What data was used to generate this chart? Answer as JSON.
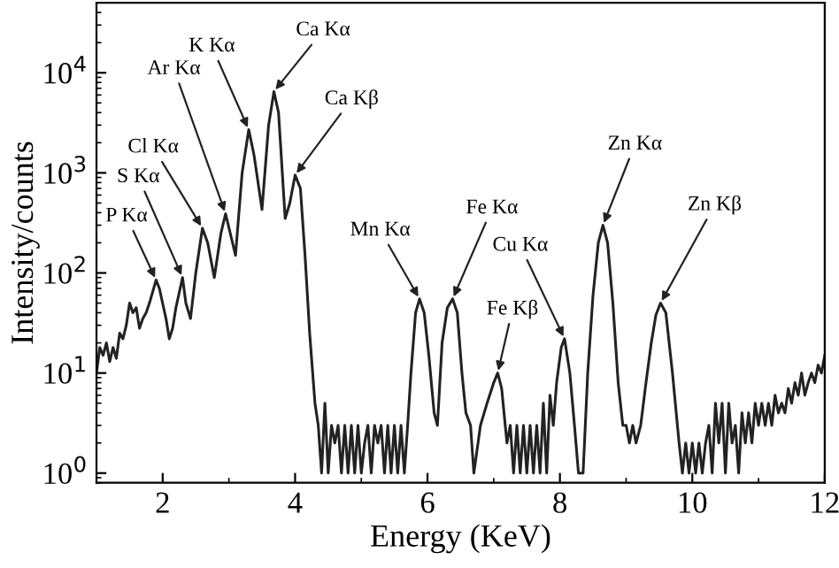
{
  "chart_data": {
    "type": "line",
    "xlabel": "Energy (KeV)",
    "ylabel": "Intensity/counts",
    "log": "y",
    "grid": false,
    "marker": "none",
    "line_style": "solid",
    "xlim": [
      1,
      12
    ],
    "xticks": [
      2,
      4,
      6,
      8,
      10,
      12
    ],
    "ylim": [
      0.8,
      50000
    ],
    "yticks": [
      {
        "value": 1,
        "label": "10$^{0}$"
      },
      {
        "value": 10,
        "label": "10$^{1}$"
      },
      {
        "value": 100,
        "label": "10$^{2}$"
      },
      {
        "value": 1000,
        "label": "10$^{3}$"
      },
      {
        "value": 10000,
        "label": "10$^{4}$"
      }
    ],
    "series": [
      {
        "color": "#222222",
        "x": [
          1.0,
          1.05,
          1.1,
          1.15,
          1.2,
          1.25,
          1.3,
          1.35,
          1.4,
          1.45,
          1.5,
          1.55,
          1.6,
          1.65,
          1.7,
          1.75,
          1.8,
          1.9,
          1.95,
          2.05,
          2.1,
          2.15,
          2.2,
          2.3,
          2.35,
          2.42,
          2.5,
          2.6,
          2.68,
          2.78,
          2.88,
          2.95,
          3.02,
          3.1,
          3.2,
          3.3,
          3.38,
          3.5,
          3.6,
          3.68,
          3.75,
          3.85,
          3.92,
          4.0,
          4.08,
          4.15,
          4.22,
          4.3,
          4.35,
          4.4,
          4.45,
          4.5,
          4.55,
          4.6,
          4.65,
          4.7,
          4.75,
          4.8,
          4.85,
          4.9,
          4.95,
          5.0,
          5.05,
          5.1,
          5.15,
          5.2,
          5.25,
          5.3,
          5.35,
          5.4,
          5.45,
          5.5,
          5.55,
          5.6,
          5.65,
          5.7,
          5.75,
          5.82,
          5.88,
          5.95,
          6.02,
          6.1,
          6.15,
          6.22,
          6.3,
          6.38,
          6.45,
          6.52,
          6.58,
          6.65,
          6.7,
          6.8,
          6.9,
          7.0,
          7.06,
          7.12,
          7.2,
          7.25,
          7.3,
          7.35,
          7.4,
          7.45,
          7.5,
          7.55,
          7.6,
          7.65,
          7.7,
          7.75,
          7.8,
          7.85,
          7.9,
          7.95,
          8.02,
          8.07,
          8.15,
          8.22,
          8.28,
          8.35,
          8.42,
          8.5,
          8.58,
          8.65,
          8.72,
          8.8,
          8.88,
          8.95,
          9.0,
          9.05,
          9.1,
          9.15,
          9.22,
          9.3,
          9.38,
          9.45,
          9.52,
          9.6,
          9.7,
          9.8,
          9.85,
          9.9,
          9.95,
          10.0,
          10.05,
          10.1,
          10.15,
          10.2,
          10.25,
          10.3,
          10.35,
          10.4,
          10.45,
          10.5,
          10.55,
          10.6,
          10.65,
          10.7,
          10.75,
          10.8,
          10.85,
          10.9,
          10.95,
          11.0,
          11.05,
          11.1,
          11.15,
          11.2,
          11.25,
          11.3,
          11.35,
          11.4,
          11.45,
          11.5,
          11.55,
          11.6,
          11.65,
          11.7,
          11.75,
          11.8,
          11.85,
          11.9,
          11.95,
          12.0
        ],
        "values": [
          10,
          18,
          15,
          20,
          13,
          18,
          14,
          25,
          22,
          30,
          50,
          40,
          45,
          28,
          35,
          40,
          50,
          85,
          70,
          35,
          22,
          28,
          45,
          90,
          50,
          35,
          100,
          280,
          200,
          90,
          250,
          390,
          250,
          150,
          1000,
          2700,
          1500,
          430,
          3000,
          6500,
          4000,
          350,
          500,
          950,
          700,
          150,
          25,
          5,
          3,
          1,
          5,
          1,
          3,
          2,
          3,
          1,
          3,
          1,
          3,
          1,
          3,
          1,
          2,
          3,
          1,
          3,
          2,
          3,
          1,
          3,
          1,
          3,
          1,
          3,
          1,
          3,
          10,
          40,
          55,
          40,
          15,
          4,
          3,
          20,
          45,
          55,
          40,
          10,
          4,
          3,
          1,
          3,
          5,
          8,
          10,
          7,
          2,
          3,
          1,
          3,
          1,
          3,
          1,
          3,
          1,
          3,
          1,
          5,
          1,
          6,
          3,
          8,
          18,
          22,
          10,
          3,
          1,
          1,
          10,
          60,
          200,
          300,
          200,
          50,
          8,
          3,
          3,
          2,
          3,
          2,
          3,
          8,
          20,
          38,
          50,
          40,
          10,
          2,
          1,
          2,
          1,
          2,
          1,
          2,
          1,
          2,
          3,
          1,
          5,
          2,
          5,
          1,
          5,
          2,
          3,
          1,
          4,
          2,
          4,
          2,
          5,
          3,
          5,
          3,
          5,
          3,
          6,
          4,
          5,
          4,
          7,
          5,
          8,
          6,
          10,
          6,
          8,
          10,
          8,
          12,
          10,
          15
        ]
      }
    ],
    "annotations": [
      {
        "text": "P Kα",
        "x": 1.9,
        "y": 85
      },
      {
        "text": "S Kα",
        "x": 2.3,
        "y": 90
      },
      {
        "text": "Cl Kα",
        "x": 2.6,
        "y": 280
      },
      {
        "text": "Ar Kα",
        "x": 2.95,
        "y": 390
      },
      {
        "text": "K Kα",
        "x": 3.3,
        "y": 2700
      },
      {
        "text": "Ca Kα",
        "x": 3.68,
        "y": 6500
      },
      {
        "text": "Ca Kβ",
        "x": 4.0,
        "y": 950
      },
      {
        "text": "Mn Kα",
        "x": 5.88,
        "y": 55
      },
      {
        "text": "Fe Kα",
        "x": 6.38,
        "y": 55
      },
      {
        "text": "Fe Kβ",
        "x": 7.06,
        "y": 10
      },
      {
        "text": "Cu Kα",
        "x": 8.07,
        "y": 22
      },
      {
        "text": "Zn Kα",
        "x": 8.65,
        "y": 300
      },
      {
        "text": "Zn Kβ",
        "x": 9.52,
        "y": 50
      }
    ]
  }
}
